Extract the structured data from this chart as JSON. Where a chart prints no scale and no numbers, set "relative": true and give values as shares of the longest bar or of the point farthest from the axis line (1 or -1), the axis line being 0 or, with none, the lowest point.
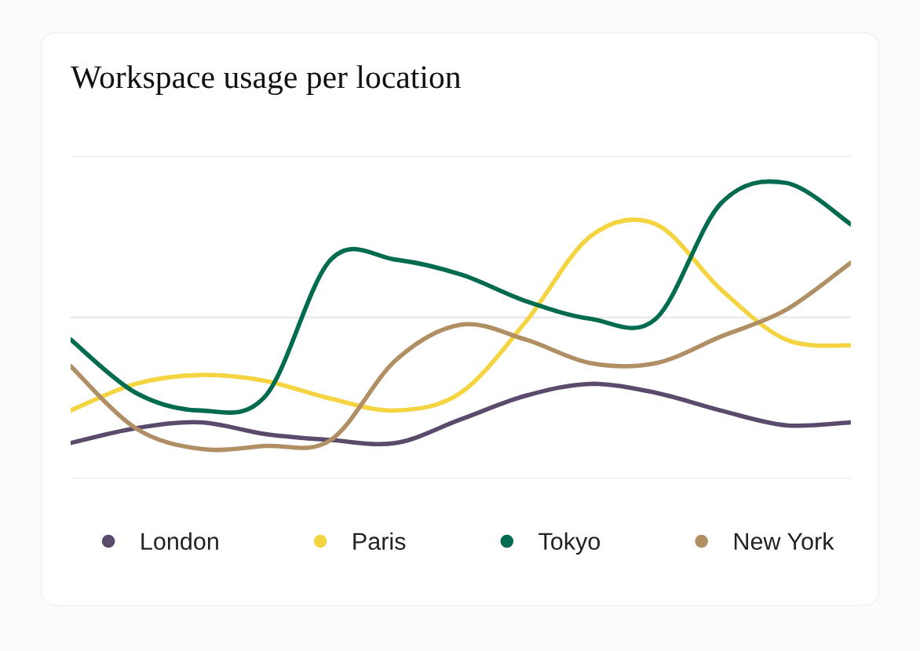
{
  "chart_data": {
    "type": "line",
    "title": "Workspace usage per location",
    "relative": true,
    "categories": [
      null,
      null,
      null,
      null,
      null,
      null,
      null,
      null,
      null,
      null,
      null,
      null,
      null
    ],
    "series": [
      {
        "name": "London",
        "color": "#5a4a6b",
        "values": [
          0.12,
          0.17,
          0.19,
          0.15,
          0.13,
          0.12,
          0.2,
          0.28,
          0.32,
          0.29,
          0.23,
          0.18,
          0.19
        ]
      },
      {
        "name": "Paris",
        "color": "#f5d442",
        "values": [
          0.23,
          0.32,
          0.35,
          0.33,
          0.27,
          0.23,
          0.29,
          0.53,
          0.82,
          0.86,
          0.64,
          0.47,
          0.45
        ]
      },
      {
        "name": "Tokyo",
        "color": "#006b4f",
        "values": [
          0.47,
          0.29,
          0.23,
          0.28,
          0.74,
          0.74,
          0.69,
          0.6,
          0.54,
          0.54,
          0.93,
          1,
          0.86
        ]
      },
      {
        "name": "New York",
        "color": "#b08f64",
        "values": [
          0.38,
          0.17,
          0.1,
          0.11,
          0.13,
          0.4,
          0.52,
          0.47,
          0.39,
          0.39,
          0.48,
          0.57,
          0.73
        ]
      }
    ],
    "ref_lines": [
      {
        "axis": "y",
        "value": 0,
        "color": "#e3e3e3"
      },
      {
        "axis": "y",
        "value": 0.545,
        "color": "#e3e3e3"
      },
      {
        "axis": "y",
        "value": 1.09,
        "color": "#e3e3e3"
      }
    ],
    "legend": "bottom",
    "marker": "none",
    "line_style": "solid"
  }
}
